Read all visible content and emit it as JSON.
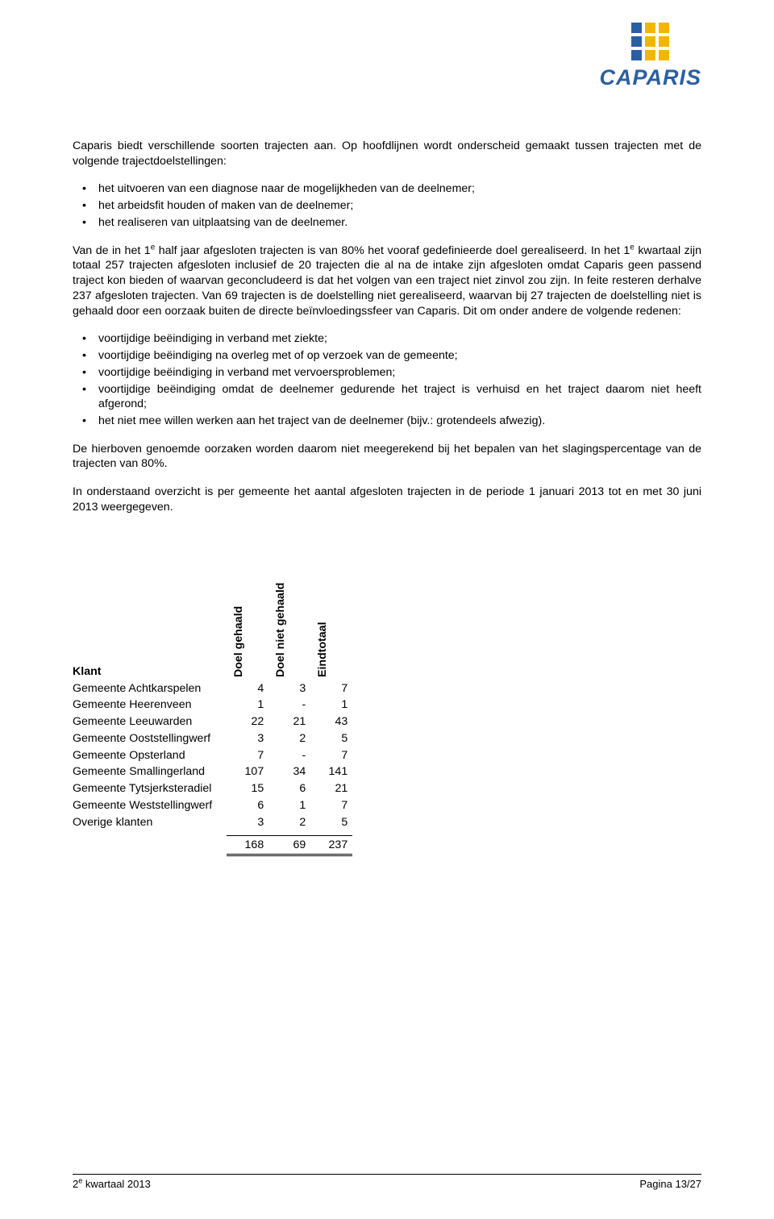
{
  "logo": {
    "brand": "CAPARIS",
    "squares": [
      "#2b5fa3",
      "#f2b600",
      "#f2b600",
      "#2b5fa3",
      "#f2b600",
      "#f2b600",
      "#2b5fa3",
      "#f2b600",
      "#f2b600"
    ],
    "brand_color": "#2b5fa3"
  },
  "intro": "Caparis biedt verschillende soorten trajecten aan. Op hoofdlijnen wordt onderscheid gemaakt tussen trajecten met de volgende trajectdoelstellingen:",
  "bullets1": [
    "het uitvoeren van een diagnose naar de mogelijkheden van de deelnemer;",
    "het arbeidsfit houden of maken van de deelnemer;",
    "het realiseren van uitplaatsing van de deelnemer."
  ],
  "para2_a": "Van de in het 1",
  "para2_b": " half jaar afgesloten trajecten is van 80% het vooraf gedefinieerde doel gerealiseerd. In het 1",
  "para2_c": " kwartaal zijn totaal 257 trajecten afgesloten inclusief de 20 trajecten die al na de intake zijn afgesloten omdat Caparis geen passend traject kon bieden of waarvan geconcludeerd is dat het volgen van een traject niet zinvol zou zijn. In feite resteren derhalve 237 afgesloten trajecten. Van 69 trajecten is de doelstelling niet gerealiseerd, waarvan bij 27 trajecten de doelstelling niet is gehaald door een oorzaak buiten de directe beïnvloedingssfeer van Caparis. Dit om onder andere de volgende redenen:",
  "sup_e": "e",
  "bullets2": [
    "voortijdige beëindiging in verband met ziekte;",
    "voortijdige beëindiging na overleg met of op verzoek van de gemeente;",
    "voortijdige beëindiging in verband met vervoersproblemen;",
    "voortijdige beëindiging omdat de deelnemer gedurende het traject is verhuisd en het traject daarom niet heeft afgerond;",
    "het niet mee willen werken aan het traject van de deelnemer (bijv.: grotendeels afwezig)."
  ],
  "para3": "De hierboven genoemde oorzaken worden daarom niet meegerekend bij het bepalen van het slagingspercentage van de trajecten van 80%.",
  "para4": "In onderstaand overzicht is per gemeente het aantal afgesloten trajecten in de periode 1 januari 2013 tot en met 30 juni 2013 weergegeven.",
  "table": {
    "col_klant": "Klant",
    "col_doel_gehaald": "Doel gehaald",
    "col_doel_niet": "Doel niet gehaald",
    "col_eindtotaal": "Eindtotaal",
    "rows": [
      {
        "name": "Gemeente Achtkarspelen",
        "a": "4",
        "b": "3",
        "c": "7"
      },
      {
        "name": "Gemeente Heerenveen",
        "a": "1",
        "b": "-",
        "c": "1"
      },
      {
        "name": "Gemeente Leeuwarden",
        "a": "22",
        "b": "21",
        "c": "43"
      },
      {
        "name": "Gemeente Ooststellingwerf",
        "a": "3",
        "b": "2",
        "c": "5"
      },
      {
        "name": "Gemeente Opsterland",
        "a": "7",
        "b": "-",
        "c": "7"
      },
      {
        "name": "Gemeente Smallingerland",
        "a": "107",
        "b": "34",
        "c": "141"
      },
      {
        "name": "Gemeente Tytsjerksteradiel",
        "a": "15",
        "b": "6",
        "c": "21"
      },
      {
        "name": "Gemeente Weststellingwerf",
        "a": "6",
        "b": "1",
        "c": "7"
      },
      {
        "name": "Overige klanten",
        "a": "3",
        "b": "2",
        "c": "5"
      }
    ],
    "totals": {
      "a": "168",
      "b": "69",
      "c": "237"
    }
  },
  "footer": {
    "left_a": "2",
    "left_sup": "e",
    "left_b": " kwartaal 2013",
    "right": "Pagina 13/27"
  }
}
